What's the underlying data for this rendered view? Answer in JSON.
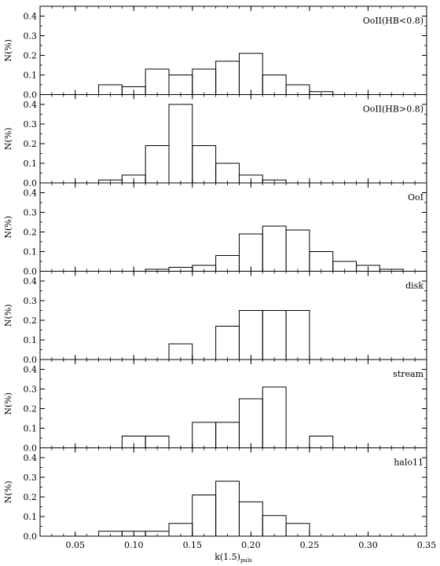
{
  "chart_data": {
    "type": "histogram",
    "xlabel": "k(1.5)",
    "xlabel_subscript": "puls",
    "ylabel": "N(%)",
    "xlim": [
      0.02,
      0.35
    ],
    "ylim": [
      0,
      0.45
    ],
    "x_ticks": [
      "0.05",
      "0.10",
      "0.15",
      "0.20",
      "0.25",
      "0.30",
      "0.35"
    ],
    "y_ticks": [
      "0.0",
      "0.1",
      "0.2",
      "0.3",
      "0.4"
    ],
    "bin_edges": [
      0.07,
      0.09,
      0.11,
      0.13,
      0.15,
      0.17,
      0.19,
      0.21,
      0.23,
      0.25,
      0.27,
      0.29,
      0.31,
      0.33,
      0.35
    ],
    "panels": [
      {
        "name": "OoII(HB<0.8)",
        "values": [
          0.05,
          0.04,
          0.13,
          0.1,
          0.13,
          0.17,
          0.21,
          0.1,
          0.05,
          0.015,
          0,
          0,
          0,
          0
        ]
      },
      {
        "name": "OoII(HB>0.8)",
        "values": [
          0.015,
          0.04,
          0.19,
          0.4,
          0.19,
          0.1,
          0.04,
          0.015,
          0,
          0,
          0,
          0,
          0,
          0
        ]
      },
      {
        "name": "OoI",
        "values": [
          0,
          0,
          0.01,
          0.02,
          0.03,
          0.08,
          0.19,
          0.23,
          0.21,
          0.1,
          0.05,
          0.03,
          0.01,
          0
        ]
      },
      {
        "name": "disk",
        "values": [
          0,
          0,
          0,
          0.08,
          0,
          0.17,
          0.25,
          0.25,
          0.25,
          0,
          0,
          0,
          0,
          0
        ]
      },
      {
        "name": "stream",
        "values": [
          0,
          0.06,
          0.06,
          0,
          0.13,
          0.13,
          0.25,
          0.31,
          0,
          0.06,
          0,
          0,
          0,
          0
        ]
      },
      {
        "name": "halo11",
        "values": [
          0.025,
          0.025,
          0.025,
          0.065,
          0.21,
          0.28,
          0.175,
          0.105,
          0.065,
          0,
          0,
          0,
          0,
          0
        ]
      }
    ]
  }
}
